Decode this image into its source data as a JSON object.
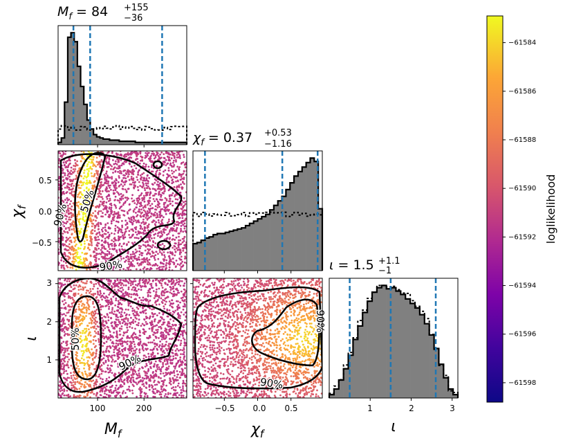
{
  "chart_data": {
    "type": "corner-plot",
    "parameters": [
      {
        "key": "mf",
        "label": "M_f",
        "lim": [
          15,
          292
        ],
        "ticks": [
          100,
          200
        ]
      },
      {
        "key": "chif",
        "label": "χ_f",
        "lim": [
          -0.97,
          0.97
        ],
        "ticks": [
          -0.5,
          0.0,
          0.5
        ]
      },
      {
        "key": "iota",
        "label": "ι",
        "lim": [
          0,
          3.14
        ],
        "ticks": [
          1,
          2,
          3
        ]
      }
    ],
    "titles": {
      "mf": {
        "name": "M",
        "sub": "f",
        "value": "84",
        "plus": "+155",
        "minus": "−36"
      },
      "chif": {
        "name": "χ",
        "sub": "f",
        "value": "0.37",
        "plus": "+0.53",
        "minus": "−1.16"
      },
      "iota": {
        "name": "ι",
        "sub": "",
        "value": "1.5",
        "plus": "+1.1",
        "minus": "−1"
      }
    },
    "quantile_lines": {
      "mf": [
        48,
        84,
        239
      ],
      "chif": [
        -0.79,
        0.37,
        0.9
      ],
      "iota": [
        0.5,
        1.5,
        2.6
      ]
    },
    "histograms": {
      "mf": {
        "solid": [
          2,
          6,
          38,
          96,
          100,
          92,
          70,
          52,
          36,
          22,
          14,
          9,
          7,
          6,
          5,
          5,
          4,
          4,
          4,
          3,
          3,
          3,
          3,
          3,
          2,
          2,
          2,
          2,
          2,
          2,
          2,
          2,
          2,
          2,
          2,
          2,
          2,
          2,
          2,
          2
        ],
        "dashed_level": 15
      },
      "chif": {
        "solid": [
          24,
          25,
          27,
          29,
          30,
          32,
          33,
          33,
          34,
          35,
          36,
          37,
          38,
          40,
          42,
          44,
          46,
          48,
          50,
          54,
          58,
          62,
          66,
          72,
          78,
          84,
          88,
          92,
          96,
          100,
          97,
          55
        ],
        "dashed_level": 50
      },
      "iota": {
        "solid": [
          3,
          8,
          16,
          26,
          38,
          52,
          64,
          76,
          86,
          94,
          98,
          100,
          97,
          98,
          95,
          92,
          88,
          84,
          80,
          74,
          66,
          56,
          44,
          30,
          18,
          8,
          3
        ],
        "dashed_scale": 1.03
      }
    },
    "contour_labels": [
      "50%",
      "90%"
    ],
    "colorbar": {
      "label": "loglikelihood",
      "min": -61598.8,
      "max": -61582.9,
      "ticks": [
        -61584,
        -61586,
        -61588,
        -61590,
        -61592,
        -61594,
        -61596,
        -61598
      ],
      "tick_labels": [
        "−61584",
        "−61586",
        "−61588",
        "−61590",
        "−61592",
        "−61594",
        "−61596",
        "−61598"
      ],
      "colormap": "plasma"
    },
    "tick_labels": {
      "mf_x": [
        "100",
        "200"
      ],
      "chif_y": [
        "0.5",
        "0.0",
        "−0.5"
      ],
      "chif_x": [
        "−0.5",
        "0.0",
        "0.5"
      ],
      "iota_y": [
        "1",
        "2",
        "3"
      ],
      "iota_x": [
        "1",
        "2",
        "3"
      ]
    },
    "colors": {
      "quantile": "#1f77b4",
      "hist_fill": "#808080",
      "contour": "#000000"
    }
  }
}
